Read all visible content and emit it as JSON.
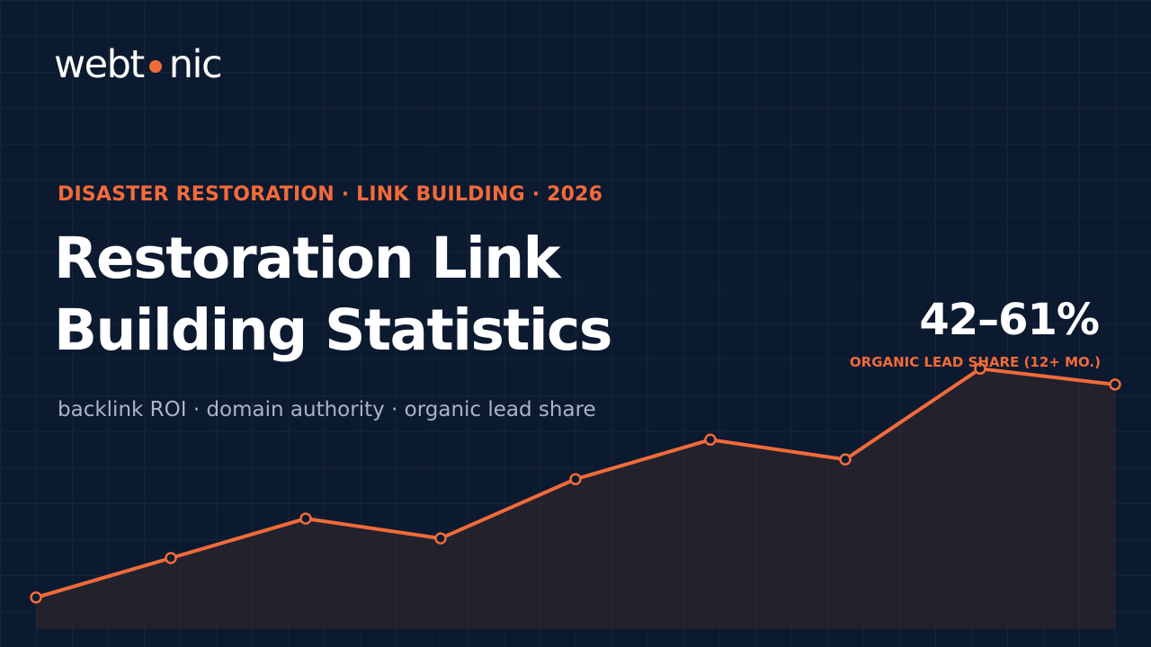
{
  "brand": {
    "logo_left": "webt",
    "logo_right": "nic",
    "accent_color": "#f26b3a",
    "background_color": "#0c1a30"
  },
  "hero": {
    "eyebrow": "DISASTER RESTORATION · LINK BUILDING · 2026",
    "title_line1": "Restoration Link",
    "title_line2": "Building Statistics",
    "subtitle": "backlink ROI · domain authority · organic lead share"
  },
  "stat": {
    "value": "42–61%",
    "label": "ORGANIC LEAD SHARE (12+ MO.)"
  },
  "chart_data": {
    "type": "area",
    "values": [
      8,
      18,
      28,
      23,
      38,
      48,
      43,
      66,
      62
    ],
    "ylim": [
      0,
      90
    ],
    "grid": true,
    "line_color": "#f26b3a"
  }
}
